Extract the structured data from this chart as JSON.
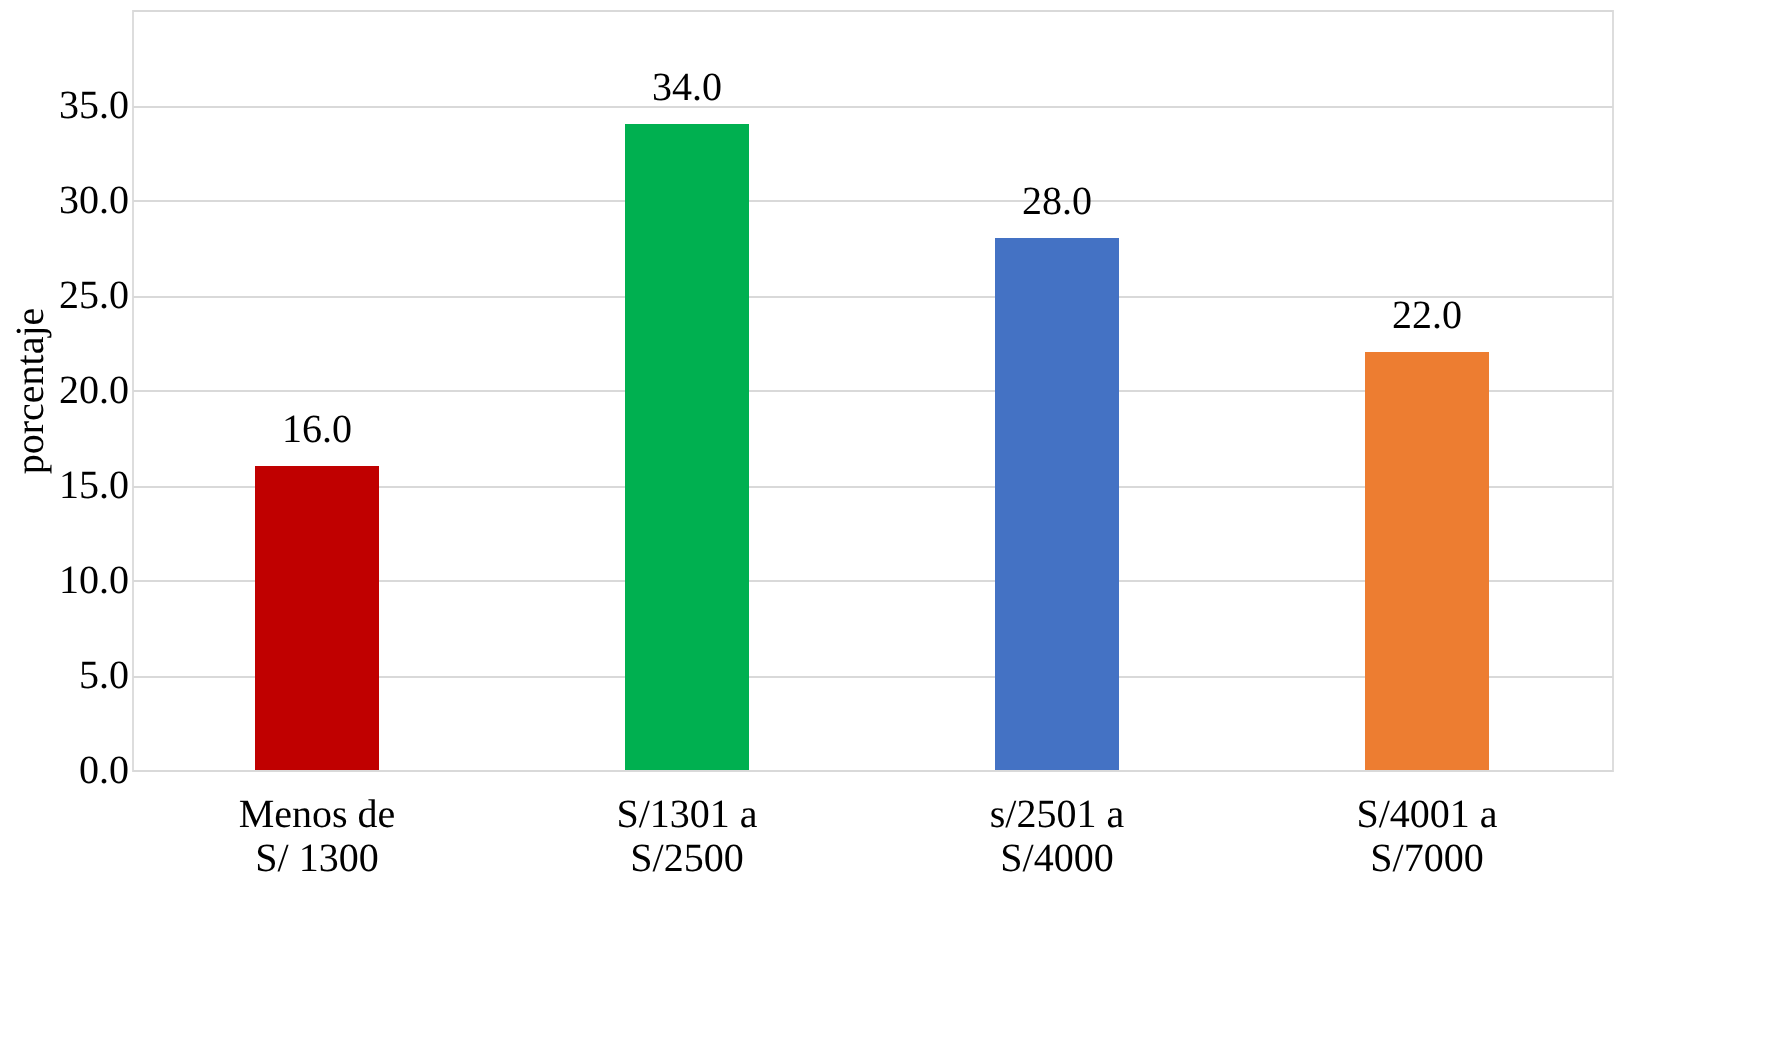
{
  "chart_data": {
    "type": "bar",
    "ylabel": "porcentaje",
    "categories": [
      "Menos de\nS/ 1300",
      "S/1301 a\nS/2500",
      "s/2501 a\nS/4000",
      "S/4001 a\nS/7000"
    ],
    "values": [
      16,
      34,
      28,
      22
    ],
    "colors": [
      "#c00000",
      "#00b050",
      "#4472c4",
      "#ed7d31"
    ],
    "value_labels": [
      "16.0",
      "34.0",
      "28.0",
      "22.0"
    ],
    "ylim": [
      0,
      40
    ],
    "yticks": [
      {
        "value": 0,
        "label": "0.0"
      },
      {
        "value": 5,
        "label": "5.0"
      },
      {
        "value": 10,
        "label": "10.0"
      },
      {
        "value": 15,
        "label": "15.0"
      },
      {
        "value": 20,
        "label": "20.0"
      },
      {
        "value": 25,
        "label": "25.0"
      },
      {
        "value": 30,
        "label": "30.0"
      },
      {
        "value": 35,
        "label": "35.0"
      },
      {
        "value": 40,
        "label": null
      }
    ],
    "grid": "y"
  }
}
